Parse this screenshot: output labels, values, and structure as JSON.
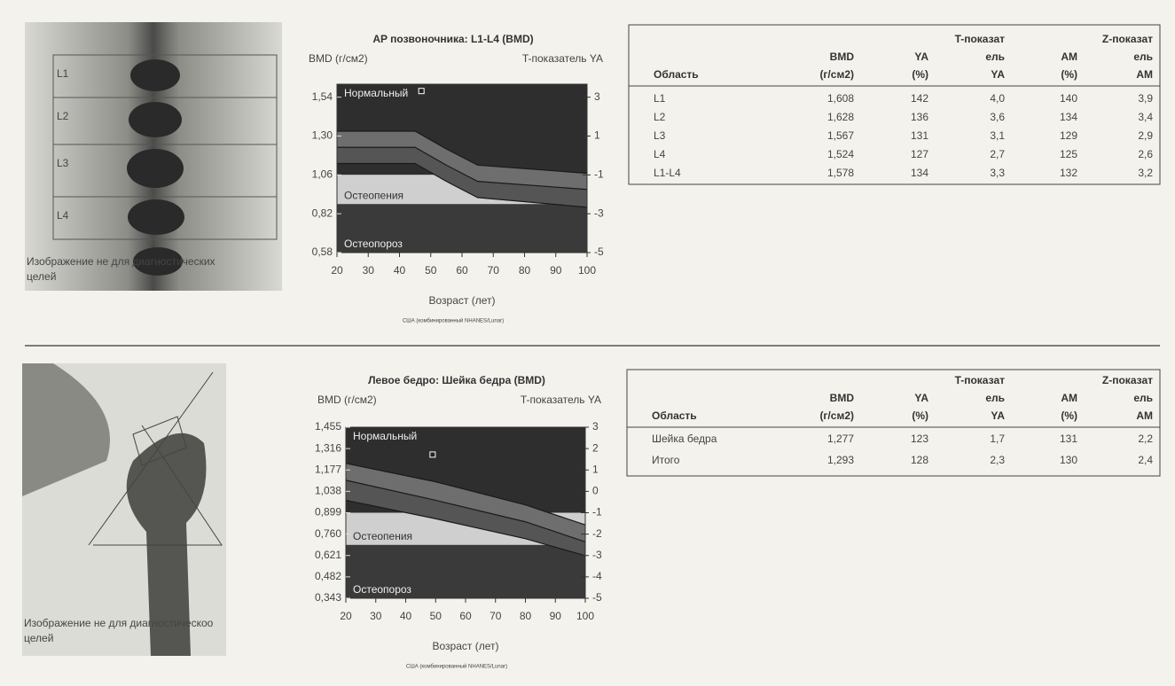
{
  "chart_data": [
    {
      "type": "line",
      "title": "AP позвоночника: L1-L4 (BMD)",
      "ylabel": "BMD (г/см2)",
      "y2label": "T-показатель YA",
      "xlabel": "Возраст (лет)",
      "source": "США (комбинированный NHANES/Lunar)",
      "xlim": [
        20,
        100
      ],
      "xticks": [
        20,
        30,
        40,
        50,
        60,
        70,
        80,
        90,
        100
      ],
      "ylim": [
        0.58,
        1.62
      ],
      "yticks": [
        {
          "value": 0.58,
          "label": "0,58"
        },
        {
          "value": 0.82,
          "label": "0,82"
        },
        {
          "value": 1.06,
          "label": "1,06"
        },
        {
          "value": 1.3,
          "label": "1,30"
        },
        {
          "value": 1.54,
          "label": "1,54"
        }
      ],
      "y2lim": [
        -5,
        3.67
      ],
      "y2ticks": [
        -5,
        -3,
        -1,
        1,
        3
      ],
      "zones": [
        {
          "label": "Нормальный",
          "from": 1.06,
          "to": 1.62,
          "color": "#2e2e2e"
        },
        {
          "label": "Остеопения",
          "from": 0.88,
          "to": 1.06,
          "color": "#cfcfcf"
        },
        {
          "label": "Остеопороз",
          "from": 0.58,
          "to": 0.88,
          "color": "#3a3a3a"
        }
      ],
      "x": [
        20,
        45,
        55,
        65,
        100
      ],
      "curves": [
        {
          "color": "#6e6e6e",
          "values": [
            1.33,
            1.33,
            1.22,
            1.12,
            1.07
          ]
        },
        {
          "color": "#555555",
          "values": [
            1.23,
            1.23,
            1.12,
            1.02,
            0.97
          ]
        },
        {
          "color": "#222222",
          "values": [
            1.13,
            1.13,
            1.02,
            0.92,
            0.86
          ]
        }
      ],
      "point": {
        "x": 47,
        "y": 1.578
      }
    },
    {
      "type": "line",
      "title": "Левое бедро: Шейка бедра (BMD)",
      "ylabel": "BMD (г/см2)",
      "y2label": "T-показатель YA",
      "xlabel": "Возраст (лет)",
      "source": "США (комбинированный NHANES/Lunar)",
      "xlim": [
        20,
        100
      ],
      "xticks": [
        20,
        30,
        40,
        50,
        60,
        70,
        80,
        90,
        100
      ],
      "ylim": [
        0.343,
        1.455
      ],
      "yticks": [
        {
          "value": 0.343,
          "label": "0,343"
        },
        {
          "value": 0.482,
          "label": "0,482"
        },
        {
          "value": 0.621,
          "label": "0,621"
        },
        {
          "value": 0.76,
          "label": "0,760"
        },
        {
          "value": 0.899,
          "label": "0,899"
        },
        {
          "value": 1.038,
          "label": "1,038"
        },
        {
          "value": 1.177,
          "label": "1,177"
        },
        {
          "value": 1.316,
          "label": "1,316"
        },
        {
          "value": 1.455,
          "label": "1,455"
        }
      ],
      "y2lim": [
        -5,
        3
      ],
      "y2ticks": [
        -5,
        -4,
        -3,
        -2,
        -1,
        0,
        1,
        2,
        3
      ],
      "zones": [
        {
          "label": "Нормальный",
          "from": 0.899,
          "to": 1.455,
          "color": "#2e2e2e"
        },
        {
          "label": "Остеопения",
          "from": 0.69,
          "to": 0.899,
          "color": "#cfcfcf"
        },
        {
          "label": "Остеопороз",
          "from": 0.343,
          "to": 0.69,
          "color": "#3a3a3a"
        }
      ],
      "x": [
        20,
        50,
        80,
        100
      ],
      "curves": [
        {
          "color": "#6e6e6e",
          "values": [
            1.22,
            1.1,
            0.95,
            0.82
          ]
        },
        {
          "color": "#555555",
          "values": [
            1.11,
            0.98,
            0.84,
            0.71
          ]
        },
        {
          "color": "#222222",
          "values": [
            0.98,
            0.86,
            0.73,
            0.62
          ]
        }
      ],
      "point": {
        "x": 49,
        "y": 1.277
      }
    }
  ],
  "spine_image": {
    "labels": [
      "L1",
      "L2",
      "L3",
      "L4"
    ],
    "caption": [
      "Изображение не для диагностических",
      "целей"
    ]
  },
  "hip_image": {
    "caption": [
      "Изображение не для диагностическоо",
      "целей"
    ]
  },
  "tables": [
    {
      "columns": [
        [
          "Область"
        ],
        [
          "BMD",
          "(г/см2)"
        ],
        [
          "YA",
          "(%)"
        ],
        [
          "T-показат",
          "ель",
          "YA"
        ],
        [
          "AM",
          "(%)"
        ],
        [
          "Z-показат",
          "ель",
          "AM"
        ]
      ],
      "rows": [
        [
          "L1",
          "1,608",
          "142",
          "4,0",
          "140",
          "3,9"
        ],
        [
          "L2",
          "1,628",
          "136",
          "3,6",
          "134",
          "3,4"
        ],
        [
          "L3",
          "1,567",
          "131",
          "3,1",
          "129",
          "2,9"
        ],
        [
          "L4",
          "1,524",
          "127",
          "2,7",
          "125",
          "2,6"
        ],
        [
          "L1-L4",
          "1,578",
          "134",
          "3,3",
          "132",
          "3,2"
        ]
      ]
    },
    {
      "columns": [
        [
          "Область"
        ],
        [
          "BMD",
          "(г/см2)"
        ],
        [
          "YA",
          "(%)"
        ],
        [
          "T-показат",
          "ель",
          "YA"
        ],
        [
          "AM",
          "(%)"
        ],
        [
          "Z-показат",
          "ель",
          "AM"
        ]
      ],
      "rows": [
        [
          "Шейка бедра",
          "1,277",
          "123",
          "1,7",
          "131",
          "2,2"
        ],
        [
          "Итого",
          "1,293",
          "128",
          "2,3",
          "130",
          "2,4"
        ]
      ]
    }
  ]
}
